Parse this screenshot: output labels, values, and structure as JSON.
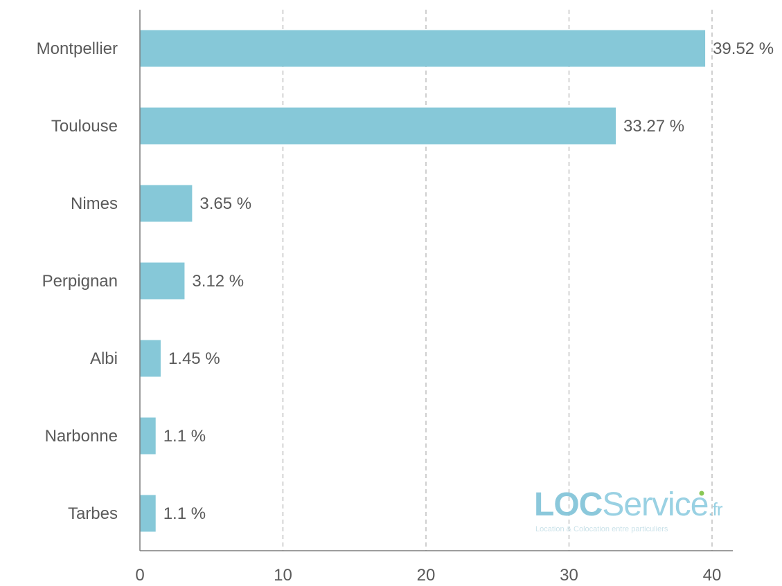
{
  "chart_data": {
    "type": "bar",
    "orientation": "horizontal",
    "categories": [
      "Montpellier",
      "Toulouse",
      "Nimes",
      "Perpignan",
      "Albi",
      "Narbonne",
      "Tarbes"
    ],
    "values": [
      39.52,
      33.27,
      3.65,
      3.12,
      1.45,
      1.1,
      1.1
    ],
    "value_labels": [
      "39.52 %",
      "33.27 %",
      "3.65 %",
      "3.12 %",
      "1.45 %",
      "1.1 %",
      "1.1 %"
    ],
    "x_ticks": [
      "0",
      "10",
      "20",
      "30",
      "40"
    ],
    "xlim": [
      0,
      40
    ],
    "grid": true,
    "bar_color": "#86c8d8",
    "text_color": "#5a5a5a",
    "grid_color": "#b5b5b5"
  },
  "watermark": {
    "brand_loc": "LOC",
    "brand_service": "Service",
    "brand_tld": ".fr",
    "tagline": "Location & Colocation entre particuliers",
    "color_loc": "#7fc3d8",
    "color_service": "#8fcde0",
    "color_dot": "#7dc242"
  }
}
